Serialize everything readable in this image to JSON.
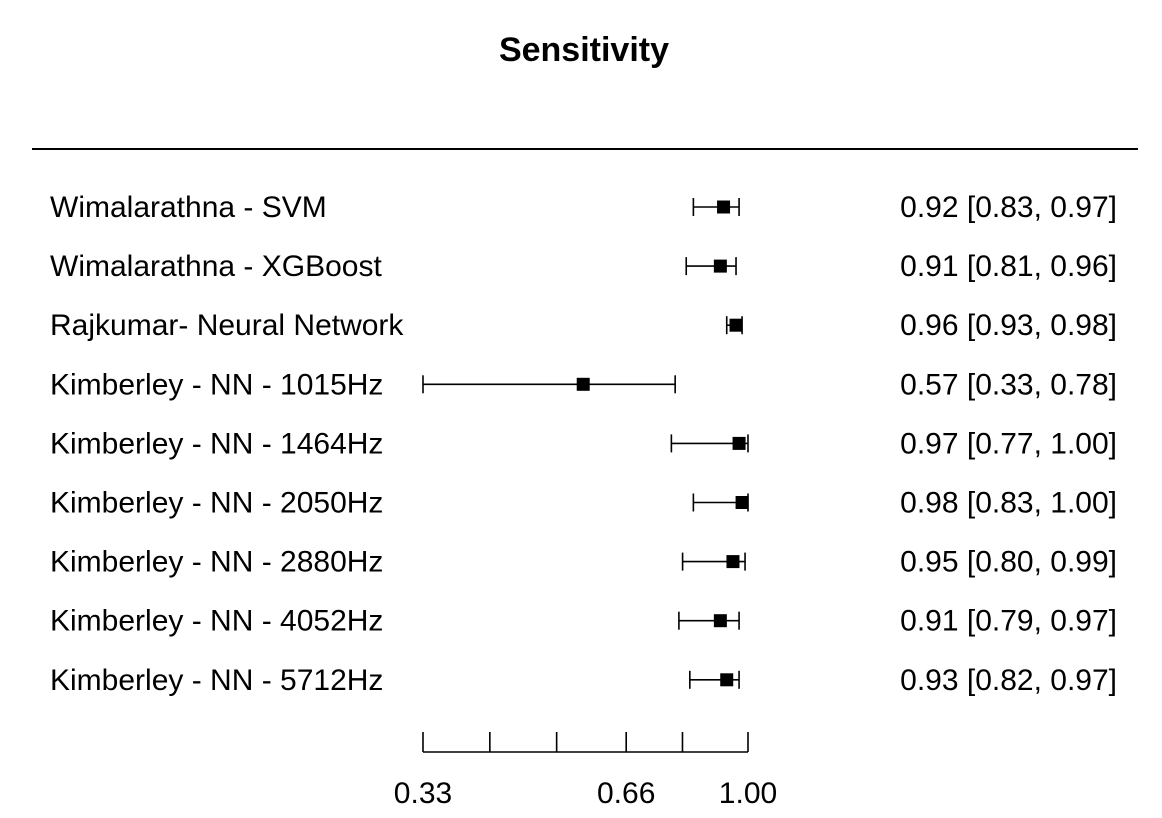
{
  "chart_data": {
    "type": "forest",
    "title": "Sensitivity",
    "x_scale": "log",
    "xlim": [
      0.33,
      1.0
    ],
    "ticks": [
      0.33,
      0.66,
      1.0
    ],
    "tick_labels": [
      "0.33",
      "0.66",
      "1.00"
    ],
    "minor_ticks": [
      0.4145,
      0.5206,
      0.7997
    ],
    "rows": [
      {
        "label": "Wimalarathna - SVM",
        "estimate": 0.92,
        "lower": 0.83,
        "upper": 0.97,
        "ci_text": "0.92 [0.83, 0.97]"
      },
      {
        "label": "Wimalarathna - XGBoost",
        "estimate": 0.91,
        "lower": 0.81,
        "upper": 0.96,
        "ci_text": "0.91 [0.81, 0.96]"
      },
      {
        "label": "Rajkumar- Neural Network",
        "estimate": 0.96,
        "lower": 0.93,
        "upper": 0.98,
        "ci_text": "0.96 [0.93, 0.98]"
      },
      {
        "label": "Kimberley - NN - 1015Hz",
        "estimate": 0.57,
        "lower": 0.33,
        "upper": 0.78,
        "ci_text": "0.57 [0.33, 0.78]"
      },
      {
        "label": "Kimberley - NN - 1464Hz",
        "estimate": 0.97,
        "lower": 0.77,
        "upper": 1.0,
        "ci_text": "0.97 [0.77, 1.00]"
      },
      {
        "label": "Kimberley - NN - 2050Hz",
        "estimate": 0.98,
        "lower": 0.83,
        "upper": 1.0,
        "ci_text": "0.98 [0.83, 1.00]"
      },
      {
        "label": "Kimberley - NN - 2880Hz",
        "estimate": 0.95,
        "lower": 0.8,
        "upper": 0.99,
        "ci_text": "0.95 [0.80, 0.99]"
      },
      {
        "label": "Kimberley - NN - 4052Hz",
        "estimate": 0.91,
        "lower": 0.79,
        "upper": 0.97,
        "ci_text": "0.91 [0.79, 0.97]"
      },
      {
        "label": "Kimberley - NN - 5712Hz",
        "estimate": 0.93,
        "lower": 0.82,
        "upper": 0.97,
        "ci_text": "0.93 [0.82, 0.97]"
      }
    ],
    "colors": {
      "marks": "#000000",
      "background": "#ffffff"
    }
  }
}
